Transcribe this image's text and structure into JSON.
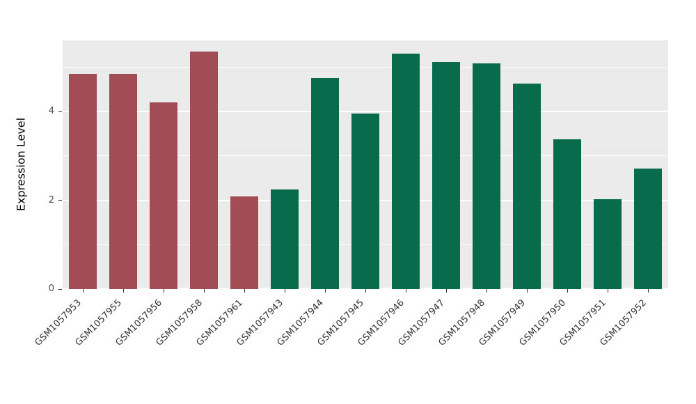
{
  "chart_data": {
    "type": "bar",
    "title": "",
    "xlabel": "",
    "ylabel": "Expression Level",
    "ylim": [
      0,
      5.6
    ],
    "yticks_major": [
      0,
      2,
      4
    ],
    "ytick_labels": [
      "0",
      "2",
      "4"
    ],
    "yticks_minor": [
      1,
      3,
      5
    ],
    "grid": true,
    "legend": "none",
    "categories": [
      "GSM1057953",
      "GSM1057955",
      "GSM1057956",
      "GSM1057958",
      "GSM1057961",
      "GSM1057943",
      "GSM1057944",
      "GSM1057945",
      "GSM1057946",
      "GSM1057947",
      "GSM1057948",
      "GSM1057949",
      "GSM1057950",
      "GSM1057951",
      "GSM1057952"
    ],
    "values": [
      4.85,
      4.85,
      4.2,
      5.35,
      2.08,
      2.25,
      4.75,
      3.95,
      5.3,
      5.12,
      5.08,
      4.62,
      3.38,
      2.02,
      2.72
    ],
    "bar_colors": [
      "#A24D55",
      "#A24D55",
      "#A24D55",
      "#A24D55",
      "#A24D55",
      "#086B4B",
      "#086B4B",
      "#086B4B",
      "#086B4B",
      "#086B4B",
      "#086B4B",
      "#086B4B",
      "#086B4B",
      "#086B4B",
      "#086B4B"
    ],
    "groups": [
      {
        "name": "group-red",
        "color": "#A24D55",
        "count": 5
      },
      {
        "name": "group-green",
        "color": "#086B4B",
        "count": 10
      }
    ]
  },
  "style": {
    "panel_bg": "#EBEBEB",
    "grid_color": "#FFFFFF",
    "tick_color": "#333333",
    "y_tick_text_color": "#4D4D4D"
  }
}
